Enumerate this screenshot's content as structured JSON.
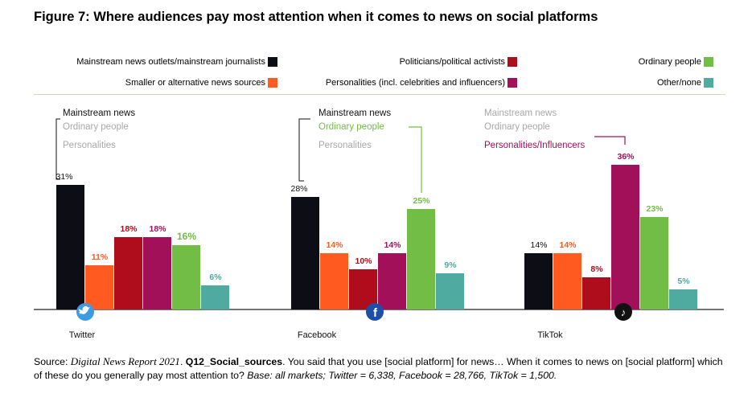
{
  "title": "Figure 7: Where audiences pay most attention when it comes to news on social platforms",
  "colors": {
    "mainstream": "#0d0d16",
    "smaller": "#ff5a1f",
    "politicians": "#b00d1c",
    "personalities": "#a3105a",
    "ordinary": "#72bd46",
    "other": "#4faaa0",
    "muted": "#a8a8a8",
    "axis": "#222222"
  },
  "legend": [
    {
      "label": "Mainstream news outlets/mainstream journalists",
      "key": "mainstream"
    },
    {
      "label": "Smaller or alternative news sources",
      "key": "smaller"
    },
    {
      "label": "Politicians/political activists",
      "key": "politicians"
    },
    {
      "label": "Personalities (incl. celebrities and influencers)",
      "key": "personalities"
    },
    {
      "label": "Ordinary people",
      "key": "ordinary"
    },
    {
      "label": "Other/none",
      "key": "other"
    }
  ],
  "chart_data": {
    "type": "bar",
    "title": "Figure 7: Where audiences pay most attention when it comes to news on social platforms",
    "unit": "%",
    "categories": [
      "Twitter",
      "Facebook",
      "TikTok"
    ],
    "series": [
      {
        "name": "Mainstream news outlets/mainstream journalists",
        "key": "mainstream",
        "values": [
          31,
          28,
          14
        ]
      },
      {
        "name": "Smaller or alternative news sources",
        "key": "smaller",
        "values": [
          11,
          14,
          14
        ]
      },
      {
        "name": "Politicians/political activists",
        "key": "politicians",
        "values": [
          18,
          10,
          8
        ]
      },
      {
        "name": "Personalities (incl. celebrities and influencers)",
        "key": "personalities",
        "values": [
          18,
          14,
          36
        ]
      },
      {
        "name": "Ordinary people",
        "key": "ordinary",
        "values": [
          16,
          25,
          23
        ]
      },
      {
        "name": "Other/none",
        "key": "other",
        "values": [
          6,
          9,
          5
        ]
      }
    ],
    "value_labels": [
      [
        "31%",
        "11%",
        "18%",
        "18%",
        "16%",
        "6%"
      ],
      [
        "28%",
        "14%",
        "10%",
        "14%",
        "25%",
        "9%"
      ],
      [
        "14%",
        "14%",
        "8%",
        "36%",
        "23%",
        "5%"
      ]
    ],
    "ylim": [
      0,
      40
    ],
    "annotations": [
      {
        "category": "Twitter",
        "items": [
          {
            "text": "Mainstream news",
            "style": "active",
            "key": "mainstream"
          },
          {
            "text": "Ordinary people",
            "style": "muted"
          },
          {
            "text": "Personalities",
            "style": "muted"
          }
        ]
      },
      {
        "category": "Facebook",
        "items": [
          {
            "text": "Mainstream news",
            "style": "active",
            "key": "mainstream"
          },
          {
            "text": "Ordinary people",
            "style": "active",
            "key": "ordinary"
          },
          {
            "text": "Personalities",
            "style": "muted"
          }
        ]
      },
      {
        "category": "TikTok",
        "items": [
          {
            "text": "Mainstream news",
            "style": "muted"
          },
          {
            "text": "Ordinary people",
            "style": "muted"
          },
          {
            "text": "Personalities/Influencers",
            "style": "active",
            "key": "personalities"
          }
        ]
      }
    ],
    "platform_icons": [
      "twitter-icon",
      "facebook-icon",
      "tiktok-icon"
    ]
  },
  "source": {
    "prefix": "Source: ",
    "report": "Digital News Report 2021",
    "after_report": ". ",
    "question_id": "Q12_Social_sources",
    "question": ". You said that you use [social platform] for news… When it comes to news on [social platform] which of these do you generally pay most attention to? ",
    "base": "Base: all markets; Twitter = 6,338, Facebook = 28,766, TikTok = 1,500."
  }
}
